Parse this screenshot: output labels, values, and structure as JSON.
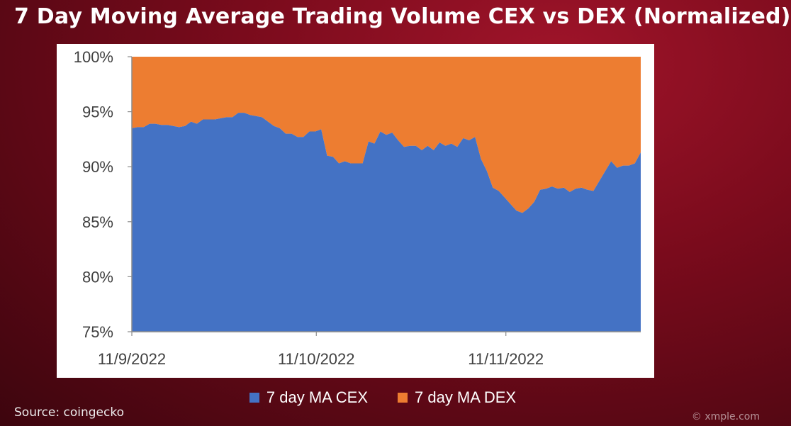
{
  "title": "7 Day Moving Average Trading Volume CEX vs DEX (Normalized)",
  "source": "Source: coingecko",
  "watermark": "© xmple.com",
  "chart_data": {
    "type": "area",
    "title": "7 Day Moving Average Trading Volume CEX vs DEX (Normalized)",
    "y_tick_labels": [
      "75%",
      "80%",
      "85%",
      "90%",
      "95%",
      "100%"
    ],
    "x_tick_labels": [
      "11/9/2022",
      "11/10/2022",
      "11/11/2022"
    ],
    "ylim": [
      75,
      100
    ],
    "stacked_percent": true,
    "grid": false,
    "legend_position": "bottom",
    "series": [
      {
        "name": "7 day MA CEX",
        "color": "#4472c4",
        "values": [
          93.5,
          93.6,
          93.6,
          93.9,
          93.9,
          93.8,
          93.8,
          93.7,
          93.6,
          93.7,
          94.1,
          93.9,
          94.3,
          94.3,
          94.3,
          94.4,
          94.5,
          94.5,
          94.9,
          94.9,
          94.7,
          94.6,
          94.5,
          94.1,
          93.7,
          93.5,
          93.0,
          93.0,
          92.7,
          92.7,
          93.2,
          93.2,
          93.4,
          91.0,
          90.9,
          90.3,
          90.5,
          90.3,
          90.3,
          90.3,
          92.3,
          92.1,
          93.2,
          92.9,
          93.1,
          92.4,
          91.8,
          91.9,
          91.9,
          91.5,
          91.9,
          91.5,
          92.2,
          91.9,
          92.1,
          91.8,
          92.6,
          92.4,
          92.7,
          90.7,
          89.6,
          88.1,
          87.8,
          87.2,
          86.6,
          86.0,
          85.8,
          86.2,
          86.8,
          87.9,
          88.0,
          88.2,
          88.0,
          88.1,
          87.7,
          88.0,
          88.1,
          87.9,
          87.8,
          88.7,
          89.6,
          90.5,
          89.9,
          90.1,
          90.1,
          90.3,
          91.3
        ]
      },
      {
        "name": "7 day MA DEX",
        "color": "#ed7d31",
        "values": [
          6.5,
          6.4,
          6.4,
          6.1,
          6.1,
          6.2,
          6.2,
          6.3,
          6.4,
          6.3,
          5.9,
          6.1,
          5.7,
          5.7,
          5.7,
          5.6,
          5.5,
          5.5,
          5.1,
          5.1,
          5.3,
          5.4,
          5.5,
          5.9,
          6.3,
          6.5,
          7.0,
          7.0,
          7.3,
          7.3,
          6.8,
          6.8,
          6.6,
          9.0,
          9.1,
          9.7,
          9.5,
          9.7,
          9.7,
          9.7,
          7.7,
          7.9,
          6.8,
          7.1,
          6.9,
          7.6,
          8.2,
          8.1,
          8.1,
          8.5,
          8.1,
          8.5,
          7.8,
          8.1,
          7.9,
          8.2,
          7.4,
          7.6,
          7.3,
          9.3,
          10.4,
          11.9,
          12.2,
          12.8,
          13.4,
          14.0,
          14.2,
          13.8,
          13.2,
          12.1,
          12.0,
          11.8,
          12.0,
          11.9,
          12.3,
          12.0,
          11.9,
          12.1,
          12.2,
          11.3,
          10.4,
          9.5,
          10.1,
          9.9,
          9.9,
          9.7,
          8.7
        ]
      }
    ]
  }
}
